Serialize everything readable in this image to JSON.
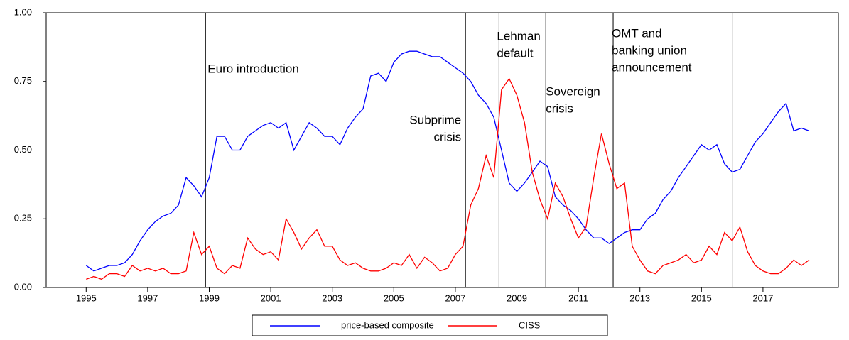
{
  "chart_data": {
    "type": "line",
    "x": [
      1995,
      1995.25,
      1995.5,
      1995.75,
      1996,
      1996.25,
      1996.5,
      1996.75,
      1997,
      1997.25,
      1997.5,
      1997.75,
      1998,
      1998.25,
      1998.5,
      1998.75,
      1999,
      1999.25,
      1999.5,
      1999.75,
      2000,
      2000.25,
      2000.5,
      2000.75,
      2001,
      2001.25,
      2001.5,
      2001.75,
      2002,
      2002.25,
      2002.5,
      2002.75,
      2003,
      2003.25,
      2003.5,
      2003.75,
      2004,
      2004.25,
      2004.5,
      2004.75,
      2005,
      2005.25,
      2005.5,
      2005.75,
      2006,
      2006.25,
      2006.5,
      2006.75,
      2007,
      2007.25,
      2007.5,
      2007.75,
      2008,
      2008.25,
      2008.5,
      2008.75,
      2009,
      2009.25,
      2009.5,
      2009.75,
      2010,
      2010.25,
      2010.5,
      2010.75,
      2011,
      2011.25,
      2011.5,
      2011.75,
      2012,
      2012.25,
      2012.5,
      2012.75,
      2013,
      2013.25,
      2013.5,
      2013.75,
      2014,
      2014.25,
      2014.5,
      2014.75,
      2015,
      2015.25,
      2015.5,
      2015.75,
      2016,
      2016.25,
      2016.5,
      2016.75,
      2017,
      2017.25,
      2017.5,
      2017.75,
      2018,
      2018.25,
      2018.5
    ],
    "series": [
      {
        "name": "price-based composite",
        "color": "#0000ff",
        "values": [
          0.08,
          0.06,
          0.07,
          0.08,
          0.08,
          0.09,
          0.12,
          0.17,
          0.21,
          0.24,
          0.26,
          0.27,
          0.3,
          0.4,
          0.37,
          0.33,
          0.4,
          0.55,
          0.55,
          0.5,
          0.5,
          0.55,
          0.57,
          0.59,
          0.6,
          0.58,
          0.6,
          0.5,
          0.55,
          0.6,
          0.58,
          0.55,
          0.55,
          0.52,
          0.58,
          0.62,
          0.65,
          0.77,
          0.78,
          0.75,
          0.82,
          0.85,
          0.86,
          0.86,
          0.85,
          0.84,
          0.84,
          0.82,
          0.8,
          0.78,
          0.75,
          0.7,
          0.67,
          0.62,
          0.5,
          0.38,
          0.35,
          0.38,
          0.42,
          0.46,
          0.44,
          0.33,
          0.3,
          0.28,
          0.25,
          0.21,
          0.18,
          0.18,
          0.16,
          0.18,
          0.2,
          0.21,
          0.21,
          0.25,
          0.27,
          0.32,
          0.35,
          0.4,
          0.44,
          0.48,
          0.52,
          0.5,
          0.52,
          0.45,
          0.42,
          0.43,
          0.48,
          0.53,
          0.56,
          0.6,
          0.64,
          0.67,
          0.57,
          0.58,
          0.57
        ]
      },
      {
        "name": "CISS",
        "color": "#ff0000",
        "values": [
          0.03,
          0.04,
          0.03,
          0.05,
          0.05,
          0.04,
          0.08,
          0.06,
          0.07,
          0.06,
          0.07,
          0.05,
          0.05,
          0.06,
          0.2,
          0.12,
          0.15,
          0.07,
          0.05,
          0.08,
          0.07,
          0.18,
          0.14,
          0.12,
          0.13,
          0.1,
          0.25,
          0.2,
          0.14,
          0.18,
          0.21,
          0.15,
          0.15,
          0.1,
          0.08,
          0.09,
          0.07,
          0.06,
          0.06,
          0.07,
          0.09,
          0.08,
          0.12,
          0.07,
          0.11,
          0.09,
          0.06,
          0.07,
          0.12,
          0.15,
          0.3,
          0.36,
          0.48,
          0.4,
          0.72,
          0.76,
          0.7,
          0.6,
          0.42,
          0.32,
          0.25,
          0.38,
          0.33,
          0.25,
          0.18,
          0.22,
          0.4,
          0.56,
          0.45,
          0.36,
          0.38,
          0.15,
          0.1,
          0.06,
          0.05,
          0.08,
          0.09,
          0.1,
          0.12,
          0.09,
          0.1,
          0.15,
          0.12,
          0.2,
          0.17,
          0.22,
          0.13,
          0.08,
          0.06,
          0.05,
          0.05,
          0.07,
          0.1,
          0.08,
          0.1
        ]
      }
    ],
    "xlim": [
      1993.7,
      2019.45
    ],
    "xticks": [
      1995,
      1997,
      1999,
      2001,
      2003,
      2005,
      2007,
      2009,
      2011,
      2013,
      2015,
      2017
    ],
    "ylim": [
      0,
      1
    ],
    "yticks": [
      {
        "value": 0,
        "label": "0.00"
      },
      {
        "value": 0.25,
        "label": "0.25"
      },
      {
        "value": 0.5,
        "label": "0.50"
      },
      {
        "value": 0.75,
        "label": "0.75"
      },
      {
        "value": 1,
        "label": "1.00"
      }
    ],
    "events": [
      {
        "x": 1998.88,
        "label": [
          "Euro introduction"
        ]
      },
      {
        "x": 2007.33,
        "label": [
          "Subprime",
          "crisis"
        ]
      },
      {
        "x": 2008.42,
        "label": [
          "Lehman",
          "default"
        ]
      },
      {
        "x": 2009.94,
        "label": [
          "Sovereign",
          "crisis"
        ]
      },
      {
        "x": 2012.13,
        "label": [
          "OMT and",
          "banking union",
          "announcement"
        ]
      },
      {
        "x": 2016.0
      }
    ]
  }
}
